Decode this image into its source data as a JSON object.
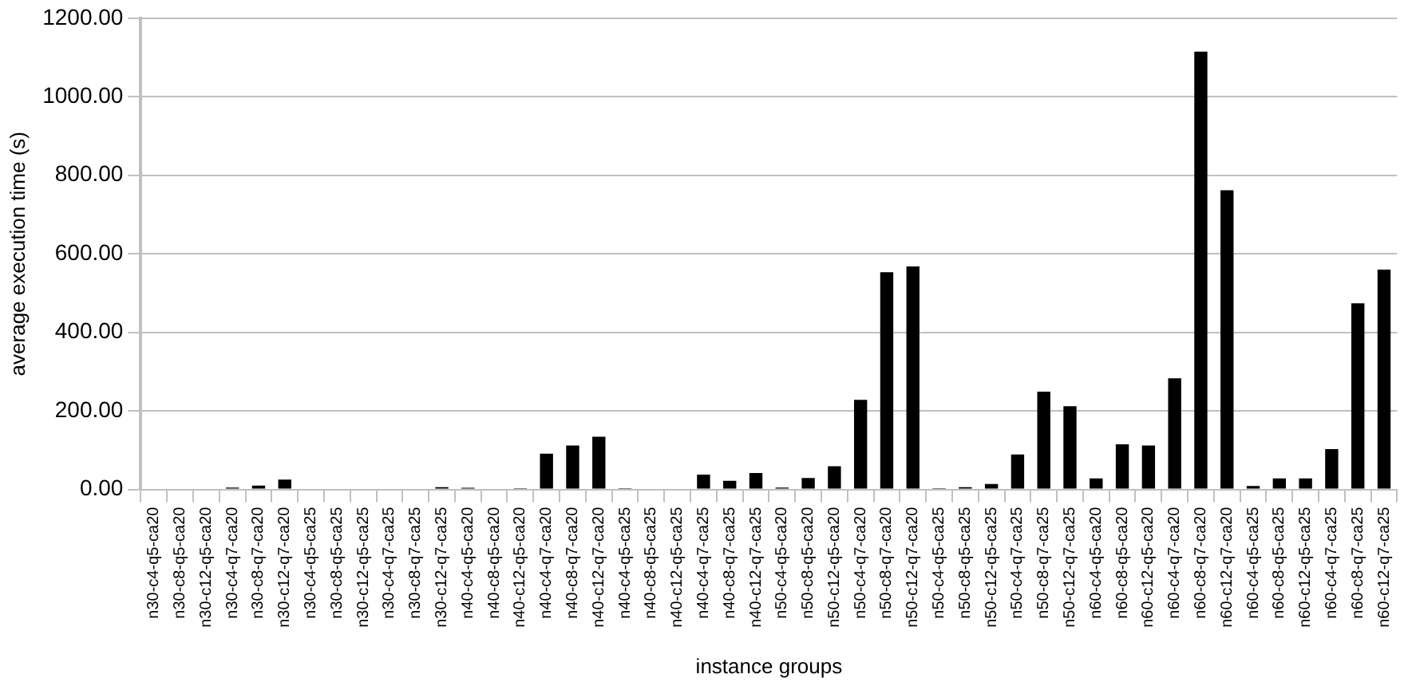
{
  "chart_data": {
    "type": "bar",
    "xlabel": "instance groups",
    "ylabel": "average execution time (s)",
    "categories": [
      "n30-c4-q5-ca20",
      "n30-c8-q5-ca20",
      "n30-c12-q5-ca20",
      "n30-c4-q7-ca20",
      "n30-c8-q7-ca20",
      "n30-c12-q7-ca20",
      "n30-c4-q5-ca25",
      "n30-c8-q5-ca25",
      "n30-c12-q5-ca25",
      "n30-c4-q7-ca25",
      "n30-c8-q7-ca25",
      "n30-c12-q7-ca25",
      "n40-c4-q5-ca20",
      "n40-c8-q5-ca20",
      "n40-c12-q5-ca20",
      "n40-c4-q7-ca20",
      "n40-c8-q7-ca20",
      "n40-c12-q7-ca20",
      "n40-c4-q5-ca25",
      "n40-c8-q5-ca25",
      "n40-c12-q5-ca25",
      "n40-c4-q7-ca25",
      "n40-c8-q7-ca25",
      "n40-c12-q7-ca25",
      "n50-c4-q5-ca20",
      "n50-c8-q5-ca20",
      "n50-c12-q5-ca20",
      "n50-c4-q7-ca20",
      "n50-c8-q7-ca20",
      "n50-c12-q7-ca20",
      "n50-c4-q5-ca25",
      "n50-c8-q5-ca25",
      "n50-c12-q5-ca25",
      "n50-c4-q7-ca25",
      "n50-c8-q7-ca25",
      "n50-c12-q7-ca25",
      "n60-c4-q5-ca20",
      "n60-c8-q5-ca20",
      "n60-c12-q5-ca20",
      "n60-c4-q7-ca20",
      "n60-c8-q7-ca20",
      "n60-c12-q7-ca20",
      "n60-c4-q5-ca25",
      "n60-c8-q5-ca25",
      "n60-c12-q5-ca25",
      "n60-c4-q7-ca25",
      "n60-c8-q7-ca25",
      "n60-c12-q7-ca25"
    ],
    "values": [
      0,
      0,
      0,
      5,
      10,
      25,
      0,
      0,
      0,
      0,
      0,
      6,
      4,
      0,
      3,
      91,
      112,
      134,
      3,
      0,
      0,
      38,
      22,
      42,
      5,
      29,
      59,
      228,
      553,
      568,
      3,
      6,
      14,
      89,
      249,
      212,
      28,
      115,
      112,
      283,
      1115,
      762,
      9,
      28,
      28,
      103,
      474,
      560
    ],
    "color": "#000000",
    "ylim": [
      0,
      1200
    ],
    "yticks": [
      {
        "value": 0,
        "label": "0.00"
      },
      {
        "value": 200,
        "label": "200.00"
      },
      {
        "value": 400,
        "label": "400.00"
      },
      {
        "value": 600,
        "label": "600.00"
      },
      {
        "value": 800,
        "label": "800.00"
      },
      {
        "value": 1000,
        "label": "1000.00"
      },
      {
        "value": 1200,
        "label": "1200.00"
      }
    ],
    "grid": "y"
  }
}
